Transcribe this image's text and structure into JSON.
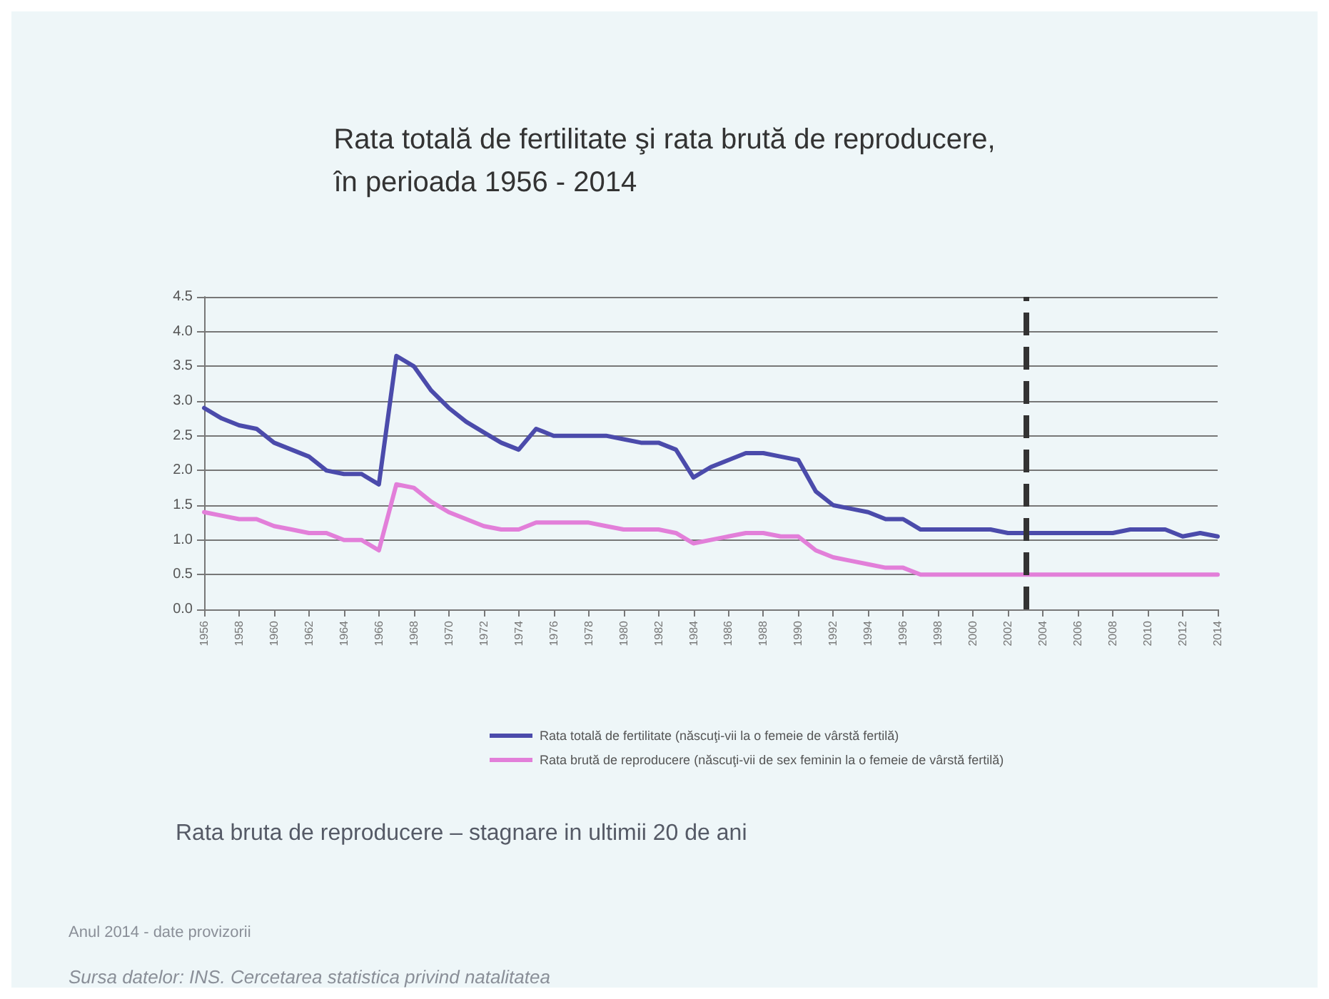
{
  "chart_data": {
    "type": "line",
    "title": "Rata totală de fertilitate şi rata brută de reproducere,\nîn perioada 1956 - 2014",
    "x": [
      1956,
      1957,
      1958,
      1959,
      1960,
      1961,
      1962,
      1963,
      1964,
      1965,
      1966,
      1967,
      1968,
      1969,
      1970,
      1971,
      1972,
      1973,
      1974,
      1975,
      1976,
      1977,
      1978,
      1979,
      1980,
      1981,
      1982,
      1983,
      1984,
      1985,
      1986,
      1987,
      1988,
      1989,
      1990,
      1991,
      1992,
      1993,
      1994,
      1995,
      1996,
      1997,
      1998,
      1999,
      2000,
      2001,
      2002,
      2003,
      2004,
      2005,
      2006,
      2007,
      2008,
      2009,
      2010,
      2011,
      2012,
      2013,
      2014
    ],
    "series": [
      {
        "name": "Rata totală de fertilitate (născuţi-vii la o femeie de vârstă fertilă)",
        "color": "#4b4bab",
        "values": [
          2.9,
          2.75,
          2.65,
          2.6,
          2.4,
          2.3,
          2.2,
          2.0,
          1.95,
          1.95,
          1.8,
          3.65,
          3.5,
          3.15,
          2.9,
          2.7,
          2.55,
          2.4,
          2.3,
          2.6,
          2.5,
          2.5,
          2.5,
          2.5,
          2.45,
          2.4,
          2.4,
          2.3,
          1.9,
          2.05,
          2.15,
          2.25,
          2.25,
          2.2,
          2.15,
          1.7,
          1.5,
          1.45,
          1.4,
          1.3,
          1.3,
          1.15,
          1.15,
          1.15,
          1.15,
          1.15,
          1.1,
          1.1,
          1.1,
          1.1,
          1.1,
          1.1,
          1.1,
          1.15,
          1.15,
          1.15,
          1.05,
          1.1,
          1.05
        ]
      },
      {
        "name": "Rata brută de reproducere (născuţi-vii de sex feminin la o femeie de vârstă fertilă)",
        "color": "#e27fd9",
        "values": [
          1.4,
          1.35,
          1.3,
          1.3,
          1.2,
          1.15,
          1.1,
          1.1,
          1.0,
          1.0,
          0.85,
          1.8,
          1.75,
          1.55,
          1.4,
          1.3,
          1.2,
          1.15,
          1.15,
          1.25,
          1.25,
          1.25,
          1.25,
          1.2,
          1.15,
          1.15,
          1.15,
          1.1,
          0.95,
          1.0,
          1.05,
          1.1,
          1.1,
          1.05,
          1.05,
          0.85,
          0.75,
          0.7,
          0.65,
          0.6,
          0.6,
          0.5,
          0.5,
          0.5,
          0.5,
          0.5,
          0.5,
          0.5,
          0.5,
          0.5,
          0.5,
          0.5,
          0.5,
          0.5,
          0.5,
          0.5,
          0.5,
          0.5,
          0.5
        ]
      }
    ],
    "xlim": [
      1956,
      2014
    ],
    "xticks": [
      1956,
      1958,
      1960,
      1962,
      1964,
      1966,
      1968,
      1970,
      1972,
      1974,
      1976,
      1978,
      1980,
      1982,
      1984,
      1986,
      1988,
      1990,
      1992,
      1994,
      1996,
      1998,
      2000,
      2002,
      2004,
      2006,
      2008,
      2010,
      2012,
      2014
    ],
    "ylim": [
      0,
      4.5
    ],
    "yticks": [
      {
        "value": 0,
        "label": "0.0"
      },
      0.5,
      {
        "value": 1,
        "label": "1.0"
      },
      1.5,
      {
        "value": 2,
        "label": "2.0"
      },
      2.5,
      {
        "value": 3,
        "label": "3.0"
      },
      3.5,
      {
        "value": 4,
        "label": "4.0"
      },
      4.5
    ],
    "ref_lines": [
      {
        "axis": "x",
        "value": 2003,
        "color": "#333333",
        "line_style": "dashed"
      }
    ],
    "grid": "y",
    "legend": "bottom",
    "marker": "none",
    "line_style": "solid",
    "annotations": [
      "Rata bruta de reproducere – stagnare in ultimii 20 de ani",
      "Anul 2014 - date provizorii",
      "Sursa datelor: INS. Cercetarea statistica privind natalitatea"
    ]
  }
}
